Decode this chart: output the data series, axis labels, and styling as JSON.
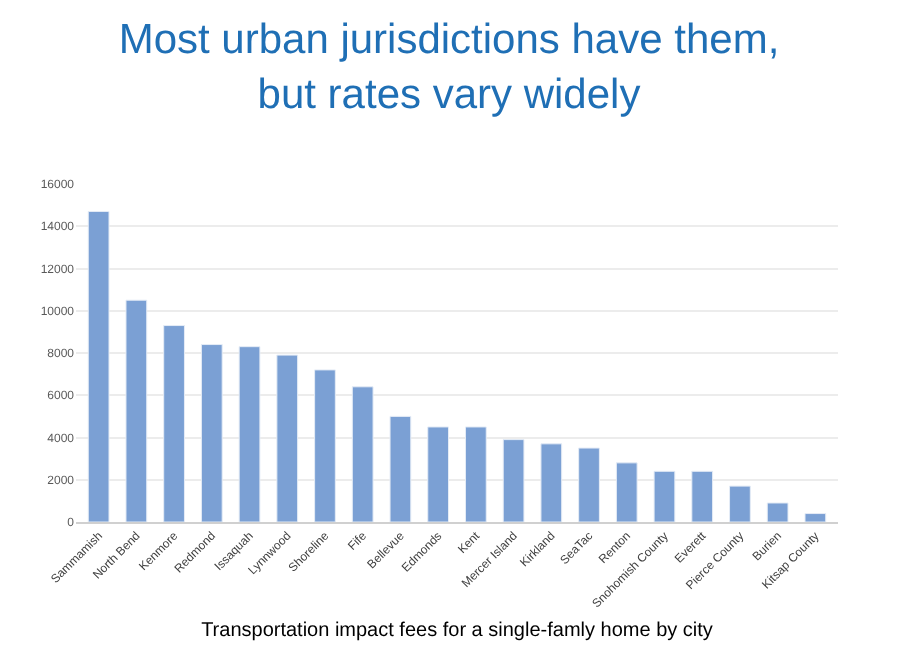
{
  "chart_data": {
    "type": "bar",
    "title": "Most urban jurisdictions have them,\nbut rates vary widely",
    "xlabel": "Transportation impact fees for a single-famly home by city",
    "categories": [
      "Sammamish",
      "North Bend",
      "Kenmore",
      "Redmond",
      "Issaquah",
      "Lynnwood",
      "Shoreline",
      "Fife",
      "Bellevue",
      "Edmonds",
      "Kent",
      "Mercer Island",
      "Kirkland",
      "SeaTac",
      "Renton",
      "Snohomish County",
      "Everett",
      "Pierce County",
      "Burien",
      "Kitsap County"
    ],
    "values": [
      14700,
      10500,
      9300,
      8400,
      8300,
      7900,
      7200,
      6400,
      5000,
      4500,
      4500,
      3900,
      3700,
      3500,
      2800,
      2400,
      2400,
      1700,
      900,
      400
    ],
    "color": "#7ba0d4",
    "ylim": [
      0,
      16000
    ],
    "yticks": [
      0,
      2000,
      4000,
      6000,
      8000,
      10000,
      12000,
      14000,
      16000
    ],
    "grid": "y"
  }
}
